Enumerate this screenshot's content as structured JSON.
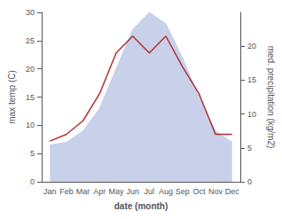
{
  "chart_data": {
    "type": "line",
    "categories": [
      "Jan",
      "Feb",
      "Mar",
      "Apr",
      "May",
      "Jun",
      "Jul",
      "Aug",
      "Sep",
      "Oct",
      "Nov",
      "Dec"
    ],
    "series": [
      {
        "type": "area",
        "axis": "y",
        "color": "#c8d0ea",
        "values": [
          6.5,
          7.0,
          9.0,
          13.0,
          20.0,
          27.0,
          30.0,
          28.0,
          22.0,
          15.0,
          9.0,
          7.0
        ]
      },
      {
        "type": "line",
        "axis": "y2",
        "color": "#b03030",
        "values": [
          6.0,
          7.0,
          9.0,
          13.0,
          19.0,
          21.5,
          19.0,
          21.5,
          17.0,
          13.0,
          7.0,
          7.0
        ]
      }
    ],
    "xlabel": "date (month)",
    "ylabel": "max temp (C)",
    "y2label": "med. precipitation (kg/m2)",
    "ylim": [
      0,
      30
    ],
    "yticks": [
      0,
      5,
      10,
      15,
      20,
      25,
      30
    ],
    "y2lim": [
      0,
      25
    ],
    "y2ticks": [
      0,
      5,
      10,
      15,
      20
    ],
    "grid": false
  }
}
